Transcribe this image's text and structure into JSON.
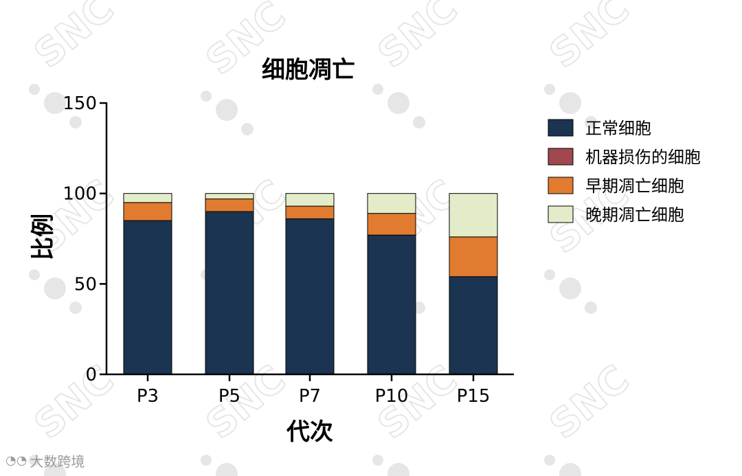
{
  "chart_data": {
    "type": "bar",
    "stacked": true,
    "title": "细胞凋亡",
    "xlabel": "代次",
    "ylabel": "比例",
    "ylim": [
      0,
      150
    ],
    "yticks": [
      0,
      50,
      100,
      150
    ],
    "categories": [
      "P3",
      "P5",
      "P7",
      "P10",
      "P15"
    ],
    "legend_position": "right",
    "series": [
      {
        "name": "正常细胞",
        "color": "#1b3451",
        "values": [
          85,
          90,
          86,
          77,
          54
        ]
      },
      {
        "name": "机器损伤的细胞",
        "color": "#a0474f",
        "values": [
          0,
          0,
          0,
          0,
          0
        ]
      },
      {
        "name": "早期凋亡细胞",
        "color": "#e07b30",
        "values": [
          10,
          7,
          7,
          12,
          22
        ]
      },
      {
        "name": "晚期凋亡细胞",
        "color": "#e3ecc8",
        "values": [
          5,
          3,
          7,
          11,
          24
        ]
      }
    ]
  },
  "watermark": {
    "text": "SNC",
    "color": "#e6e6e6"
  },
  "brand": {
    "icon": "wechat-icon",
    "text": "大数跨境"
  }
}
